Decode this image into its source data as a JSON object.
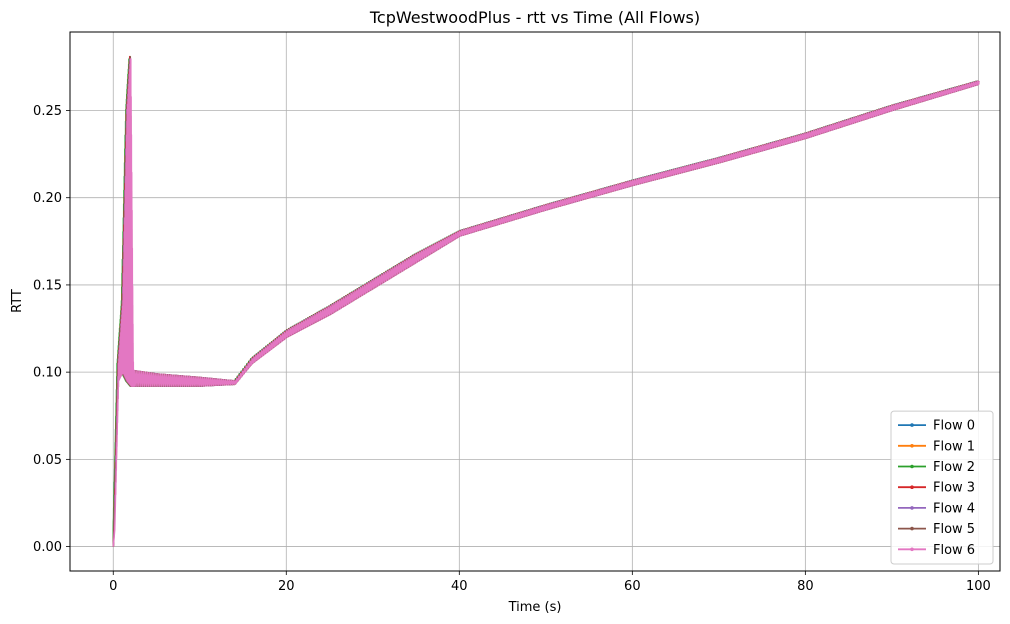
{
  "chart_data": {
    "type": "line",
    "title": "TcpWestwoodPlus - rtt vs Time (All Flows)",
    "xlabel": "Time (s)",
    "ylabel": "RTT",
    "xlim": [
      -5,
      102.5
    ],
    "ylim": [
      -0.014,
      0.295
    ],
    "xticks": [
      0,
      20,
      40,
      60,
      80,
      100
    ],
    "xtick_labels": [
      "0",
      "20",
      "40",
      "60",
      "80",
      "100"
    ],
    "yticks": [
      0.0,
      0.05,
      0.1,
      0.15,
      0.2,
      0.25
    ],
    "ytick_labels": [
      "0.00",
      "0.05",
      "0.10",
      "0.15",
      "0.20",
      "0.25"
    ],
    "grid": true,
    "legend_position": "lower-right",
    "series": [
      {
        "name": "Flow 0",
        "color": "#1f77b4",
        "x_offset": 0.0
      },
      {
        "name": "Flow 1",
        "color": "#ff7f0e",
        "x_offset": 0.03
      },
      {
        "name": "Flow 2",
        "color": "#2ca02c",
        "x_offset": -0.05
      },
      {
        "name": "Flow 3",
        "color": "#d62728",
        "x_offset": 0.02
      },
      {
        "name": "Flow 4",
        "color": "#9467bd",
        "x_offset": 0.05
      },
      {
        "name": "Flow 5",
        "color": "#8c564b",
        "x_offset": 0.08
      },
      {
        "name": "Flow 6",
        "color": "#e377c2",
        "x_offset": 0.12
      }
    ],
    "envelope_low": {
      "x": [
        0,
        0.5,
        1.0,
        1.5,
        2.0,
        5,
        10,
        14,
        16,
        20,
        25,
        30,
        35,
        40,
        50,
        60,
        70,
        80,
        90,
        100
      ],
      "y": [
        0,
        0.095,
        0.1,
        0.095,
        0.092,
        0.092,
        0.092,
        0.093,
        0.105,
        0.12,
        0.133,
        0.148,
        0.163,
        0.178,
        0.193,
        0.207,
        0.22,
        0.234,
        0.25,
        0.265
      ]
    },
    "envelope_high": {
      "x": [
        0,
        0.5,
        1.0,
        1.5,
        1.9,
        2.2,
        5,
        10,
        14,
        16,
        20,
        25,
        30,
        35,
        40,
        50,
        60,
        70,
        80,
        90,
        100
      ],
      "y": [
        0,
        0.105,
        0.14,
        0.25,
        0.282,
        0.101,
        0.099,
        0.097,
        0.095,
        0.108,
        0.124,
        0.138,
        0.153,
        0.168,
        0.181,
        0.196,
        0.21,
        0.223,
        0.237,
        0.253,
        0.267
      ]
    }
  }
}
